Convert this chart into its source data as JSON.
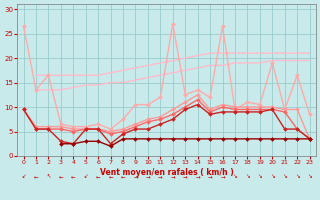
{
  "x": [
    0,
    1,
    2,
    3,
    4,
    5,
    6,
    7,
    8,
    9,
    10,
    11,
    12,
    13,
    14,
    15,
    16,
    17,
    18,
    19,
    20,
    21,
    22,
    23
  ],
  "series": [
    {
      "name": "envelope_max",
      "color": "#ffaaaa",
      "linewidth": 1.0,
      "marker": "D",
      "markersize": 2.0,
      "values": [
        26.5,
        13.5,
        16.5,
        6.5,
        6.0,
        6.0,
        6.5,
        5.5,
        7.5,
        10.5,
        10.5,
        12.0,
        27.0,
        12.5,
        13.5,
        12.0,
        26.5,
        9.5,
        11.0,
        10.5,
        19.0,
        9.5,
        16.5,
        8.5
      ]
    },
    {
      "name": "smooth_upper",
      "color": "#ffbbcc",
      "linewidth": 1.0,
      "marker": null,
      "values": [
        null,
        16.5,
        16.5,
        16.5,
        16.5,
        16.5,
        16.5,
        17.0,
        17.5,
        18.0,
        18.5,
        19.0,
        19.5,
        20.0,
        20.5,
        21.0,
        21.0,
        21.0,
        21.0,
        21.0,
        21.0,
        21.0,
        21.0,
        21.0
      ]
    },
    {
      "name": "smooth_mid",
      "color": "#ffbbcc",
      "linewidth": 1.0,
      "marker": null,
      "values": [
        null,
        13.5,
        13.5,
        13.5,
        14.0,
        14.5,
        14.5,
        15.0,
        15.0,
        15.5,
        16.0,
        16.5,
        17.0,
        17.5,
        18.0,
        18.5,
        18.5,
        19.0,
        19.0,
        19.0,
        19.5,
        19.5,
        19.5,
        19.5
      ]
    },
    {
      "name": "mid_pink",
      "color": "#ff9999",
      "linewidth": 1.0,
      "marker": "D",
      "markersize": 2.0,
      "values": [
        9.5,
        6.0,
        6.0,
        6.0,
        5.5,
        5.5,
        5.5,
        5.0,
        5.5,
        6.5,
        7.5,
        8.0,
        9.5,
        11.0,
        12.5,
        9.5,
        10.5,
        10.0,
        10.0,
        10.0,
        10.0,
        9.5,
        9.5,
        3.5
      ]
    },
    {
      "name": "mid_red",
      "color": "#ff6666",
      "linewidth": 1.0,
      "marker": "D",
      "markersize": 2.0,
      "values": [
        9.5,
        5.5,
        5.5,
        5.5,
        5.0,
        5.5,
        5.5,
        4.5,
        5.0,
        6.0,
        7.0,
        7.5,
        8.5,
        10.0,
        11.5,
        9.0,
        10.0,
        9.5,
        9.5,
        9.5,
        9.5,
        9.0,
        5.5,
        3.5
      ]
    },
    {
      "name": "lower_red",
      "color": "#cc2222",
      "linewidth": 1.0,
      "marker": "D",
      "markersize": 2.0,
      "values": [
        9.5,
        5.5,
        5.5,
        3.0,
        2.5,
        5.5,
        5.5,
        2.5,
        4.5,
        5.5,
        5.5,
        6.5,
        7.5,
        9.5,
        10.5,
        8.5,
        9.0,
        9.0,
        9.0,
        9.0,
        9.5,
        5.5,
        5.5,
        3.5
      ]
    },
    {
      "name": "bottom_dark",
      "color": "#990000",
      "linewidth": 1.0,
      "marker": "D",
      "markersize": 2.0,
      "values": [
        null,
        null,
        null,
        2.5,
        2.5,
        3.0,
        3.0,
        2.0,
        3.5,
        3.5,
        3.5,
        3.5,
        3.5,
        3.5,
        3.5,
        3.5,
        3.5,
        3.5,
        3.5,
        3.5,
        3.5,
        3.5,
        3.5,
        3.5
      ]
    }
  ],
  "wind_arrows": {
    "x": [
      0,
      1,
      2,
      3,
      4,
      5,
      6,
      7,
      8,
      9,
      10,
      11,
      12,
      13,
      14,
      15,
      16,
      17,
      18,
      19,
      20,
      21,
      22,
      23
    ],
    "color": "#cc0000"
  },
  "xlabel": "Vent moyen/en rafales ( km/h )",
  "xlim": [
    -0.5,
    23.5
  ],
  "ylim": [
    0,
    31
  ],
  "yticks": [
    0,
    5,
    10,
    15,
    20,
    25,
    30
  ],
  "xticks": [
    0,
    1,
    2,
    3,
    4,
    5,
    6,
    7,
    8,
    9,
    10,
    11,
    12,
    13,
    14,
    15,
    16,
    17,
    18,
    19,
    20,
    21,
    22,
    23
  ],
  "background_color": "#c8eaea",
  "grid_color": "#99cccc",
  "tick_color": "#cc0000",
  "label_color": "#cc0000"
}
